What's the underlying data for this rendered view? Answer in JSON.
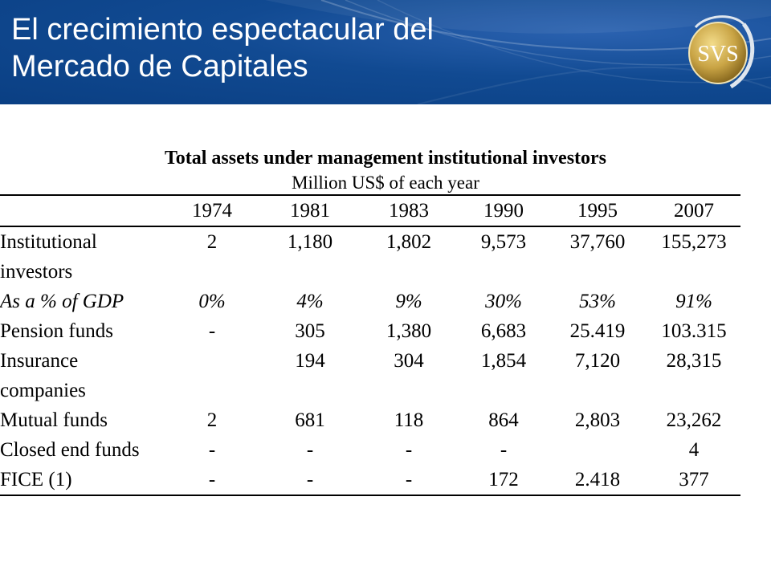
{
  "header": {
    "title_line1": "El crecimiento espectacular del",
    "title_line2": "Mercado de Capitales",
    "logo_text": "SVS",
    "colors": {
      "banner": "#0a3f83",
      "banner_light": "#2b62b0",
      "logo_gold": "#c9a445"
    }
  },
  "table": {
    "title": "Total assets under management institutional investors",
    "subtitle": "Million US$ of each year",
    "years": [
      "1974",
      "1981",
      "1983",
      "1990",
      "1995",
      "2007"
    ],
    "rows": [
      {
        "label_lines": [
          "Institutional",
          "investors"
        ],
        "values": [
          "2",
          "1,180",
          "1,802",
          "9,573",
          "37,760",
          "155,273"
        ]
      },
      {
        "label_lines": [
          "As a % of GDP"
        ],
        "values": [
          "0%",
          "4%",
          "9%",
          "30%",
          "53%",
          "91%"
        ],
        "italic": true
      },
      {
        "label_lines": [
          "Pension funds"
        ],
        "values": [
          "-",
          "305",
          "1,380",
          "6,683",
          "25.419",
          "103.315"
        ]
      },
      {
        "label_lines": [
          "Insurance",
          "companies"
        ],
        "values": [
          "",
          "194",
          "304",
          "1,854",
          "7,120",
          "28,315"
        ]
      },
      {
        "label_lines": [
          "Mutual funds"
        ],
        "values": [
          "2",
          "681",
          "118",
          "864",
          "2,803",
          "23,262"
        ]
      },
      {
        "label_lines": [
          "Closed end funds"
        ],
        "values": [
          "-",
          "-",
          "-",
          "-",
          "",
          "4"
        ]
      },
      {
        "label_lines": [
          "FICE (1)"
        ],
        "values": [
          "-",
          "-",
          "-",
          "172",
          "2.418",
          "377"
        ]
      }
    ]
  }
}
